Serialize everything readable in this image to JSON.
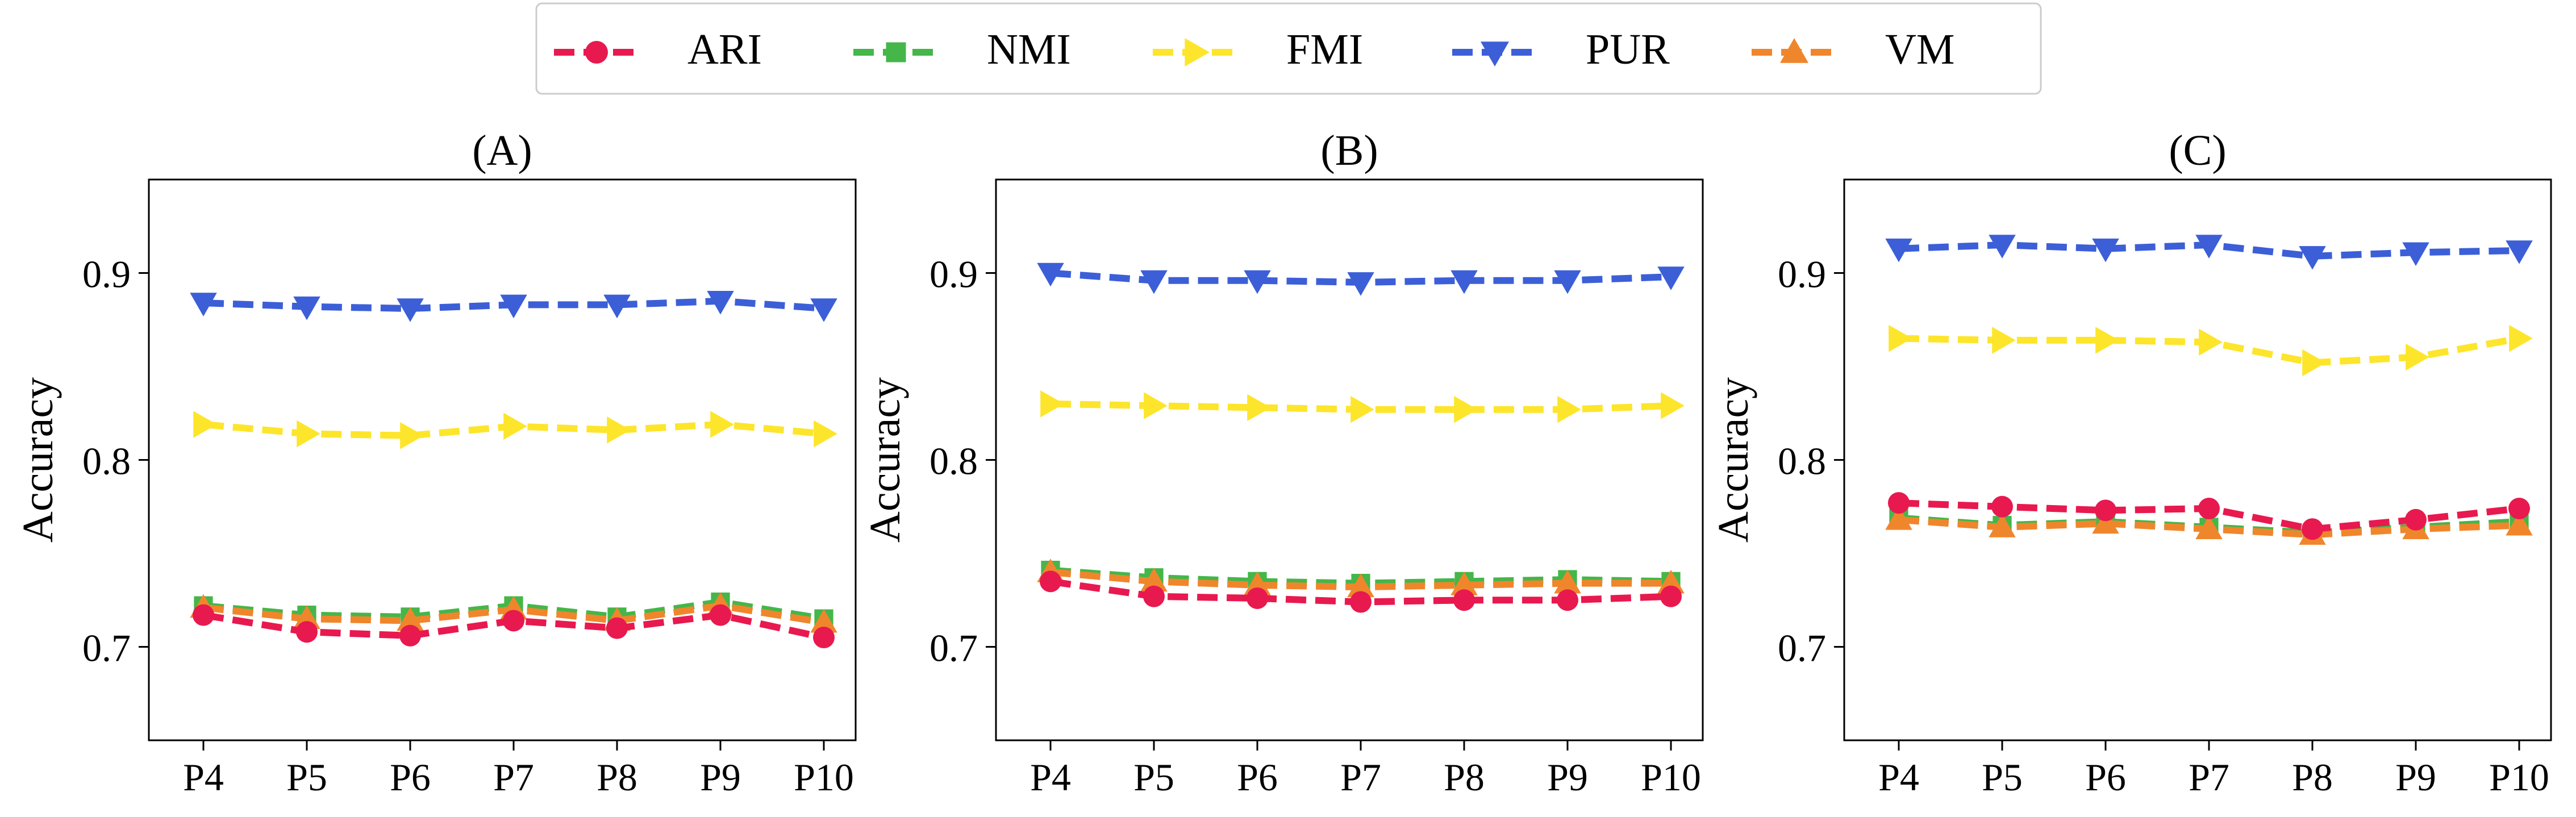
{
  "legend": {
    "placement": "top-center",
    "entries": [
      {
        "label": "ARI",
        "color": "#e8194f",
        "marker": "circle"
      },
      {
        "label": "NMI",
        "color": "#45b649",
        "marker": "square"
      },
      {
        "label": "FMI",
        "color": "#fde52b",
        "marker": "triangle-right"
      },
      {
        "label": "PUR",
        "color": "#3c5fd8",
        "marker": "triangle-down"
      },
      {
        "label": "VM",
        "color": "#f0862c",
        "marker": "triangle-up"
      }
    ]
  },
  "chart_data": [
    {
      "type": "line",
      "title": "(A)",
      "xlabel": "",
      "ylabel": "Accuracy",
      "categories": [
        "P4",
        "P5",
        "P6",
        "P7",
        "P8",
        "P9",
        "P10"
      ],
      "ylim": [
        0.65,
        0.95
      ],
      "yticks": [
        0.7,
        0.8,
        0.9
      ],
      "grid": false,
      "line_style": "dashed",
      "series": [
        {
          "name": "ARI",
          "values": [
            0.717,
            0.708,
            0.706,
            0.714,
            0.71,
            0.717,
            0.705
          ]
        },
        {
          "name": "NMI",
          "values": [
            0.722,
            0.717,
            0.716,
            0.722,
            0.716,
            0.724,
            0.715
          ]
        },
        {
          "name": "FMI",
          "values": [
            0.819,
            0.814,
            0.813,
            0.818,
            0.816,
            0.819,
            0.814
          ]
        },
        {
          "name": "PUR",
          "values": [
            0.884,
            0.882,
            0.881,
            0.883,
            0.883,
            0.885,
            0.881
          ]
        },
        {
          "name": "VM",
          "values": [
            0.721,
            0.715,
            0.714,
            0.72,
            0.714,
            0.722,
            0.713
          ]
        }
      ]
    },
    {
      "type": "line",
      "title": "(B)",
      "xlabel": "",
      "ylabel": "Accuracy",
      "categories": [
        "P4",
        "P5",
        "P6",
        "P7",
        "P8",
        "P9",
        "P10"
      ],
      "ylim": [
        0.65,
        0.95
      ],
      "yticks": [
        0.7,
        0.8,
        0.9
      ],
      "grid": false,
      "line_style": "dashed",
      "series": [
        {
          "name": "ARI",
          "values": [
            0.735,
            0.727,
            0.726,
            0.724,
            0.725,
            0.725,
            0.727
          ]
        },
        {
          "name": "NMI",
          "values": [
            0.741,
            0.737,
            0.735,
            0.734,
            0.735,
            0.736,
            0.735
          ]
        },
        {
          "name": "FMI",
          "values": [
            0.83,
            0.829,
            0.828,
            0.827,
            0.827,
            0.827,
            0.829
          ]
        },
        {
          "name": "PUR",
          "values": [
            0.9,
            0.896,
            0.896,
            0.895,
            0.896,
            0.896,
            0.898
          ]
        },
        {
          "name": "VM",
          "values": [
            0.74,
            0.735,
            0.733,
            0.732,
            0.733,
            0.734,
            0.734
          ]
        }
      ]
    },
    {
      "type": "line",
      "title": "(C)",
      "xlabel": "",
      "ylabel": "Accuracy",
      "categories": [
        "P4",
        "P5",
        "P6",
        "P7",
        "P8",
        "P9",
        "P10"
      ],
      "ylim": [
        0.65,
        0.95
      ],
      "yticks": [
        0.7,
        0.8,
        0.9
      ],
      "grid": false,
      "line_style": "dashed",
      "series": [
        {
          "name": "ARI",
          "values": [
            0.777,
            0.775,
            0.773,
            0.774,
            0.763,
            0.768,
            0.774
          ]
        },
        {
          "name": "NMI",
          "values": [
            0.769,
            0.765,
            0.767,
            0.764,
            0.761,
            0.764,
            0.767
          ]
        },
        {
          "name": "FMI",
          "values": [
            0.865,
            0.864,
            0.864,
            0.863,
            0.852,
            0.855,
            0.865
          ]
        },
        {
          "name": "PUR",
          "values": [
            0.913,
            0.915,
            0.913,
            0.915,
            0.909,
            0.911,
            0.912
          ]
        },
        {
          "name": "VM",
          "values": [
            0.768,
            0.764,
            0.766,
            0.763,
            0.76,
            0.763,
            0.765
          ]
        }
      ]
    }
  ]
}
